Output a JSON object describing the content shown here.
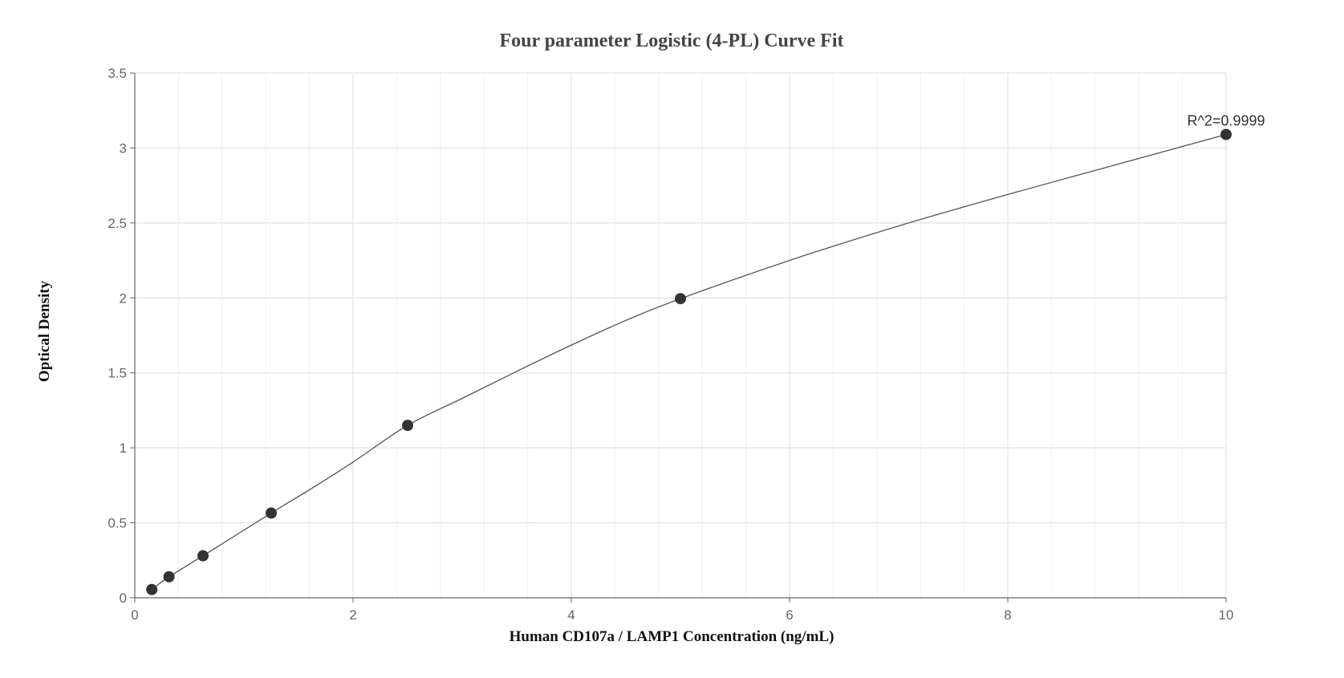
{
  "chart_data": {
    "type": "scatter",
    "title": "Four parameter Logistic (4-PL) Curve Fit",
    "xlabel": "Human CD107a / LAMP1 Concentration (ng/mL)",
    "ylabel": "Optical Density",
    "xlim": [
      0,
      10
    ],
    "ylim": [
      0,
      3.5
    ],
    "x_ticks": [
      0,
      2,
      4,
      6,
      8,
      10
    ],
    "x_tick_labels": [
      "0",
      "2",
      "4",
      "6",
      "8",
      "10"
    ],
    "y_ticks": [
      0,
      0.5,
      1,
      1.5,
      2,
      2.5,
      3,
      3.5
    ],
    "y_tick_labels": [
      "0",
      "0.5",
      "1",
      "1.5",
      "2",
      "2.5",
      "3",
      "3.5"
    ],
    "grid": true,
    "series": [
      {
        "kind": "points",
        "x": [
          0.156,
          0.313,
          0.625,
          1.25,
          2.5,
          5,
          10
        ],
        "y": [
          0.055,
          0.14,
          0.28,
          0.565,
          1.15,
          1.995,
          3.09
        ]
      },
      {
        "kind": "fit-curve",
        "x": [
          0.156,
          0.313,
          0.625,
          1.25,
          1.6,
          2.0,
          2.5,
          3.0,
          3.5,
          4.0,
          4.5,
          5.0,
          6.0,
          7.0,
          8.0,
          9.0,
          10.0
        ],
        "y": [
          0.055,
          0.14,
          0.28,
          0.565,
          0.72,
          0.905,
          1.15,
          1.33,
          1.51,
          1.685,
          1.85,
          1.995,
          2.25,
          2.48,
          2.69,
          2.89,
          3.09
        ]
      }
    ],
    "annotation": {
      "text": "R^2=0.9999",
      "x": 10,
      "y": 3.09
    },
    "colors": {
      "point": "#333333",
      "curve": "#555555",
      "grid_major": "#dde2ee",
      "grid_minor": "#eff1f6",
      "axis": "#666666"
    }
  }
}
